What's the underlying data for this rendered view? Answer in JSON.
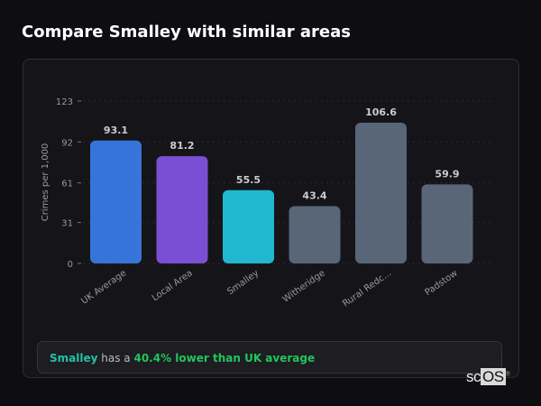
{
  "title": "Compare Smalley with similar areas",
  "chart_data": {
    "type": "bar",
    "title": "",
    "xlabel": "",
    "ylabel": "Crimes per 1,000",
    "ylim": [
      0,
      123
    ],
    "yticks": [
      0,
      31,
      61,
      92,
      123
    ],
    "grid": true,
    "categories": [
      "UK Average",
      "Local Area",
      "Smalley",
      "Witheridge",
      "Rural Redc...",
      "Padstow"
    ],
    "values": [
      93.1,
      81.2,
      55.5,
      43.4,
      106.6,
      59.9
    ],
    "value_labels": [
      "93.1",
      "81.2",
      "55.5",
      "43.4",
      "106.6",
      "59.9"
    ],
    "colors": [
      "#3674d9",
      "#7b4fd3",
      "#1fb8d0",
      "#586678",
      "#586678",
      "#586678"
    ]
  },
  "insight": {
    "area": "Smalley",
    "middle": "has a",
    "result": "40.4% lower than UK average"
  },
  "logo": {
    "text_a": "sc",
    "text_b": "OS",
    "mark": "®"
  }
}
